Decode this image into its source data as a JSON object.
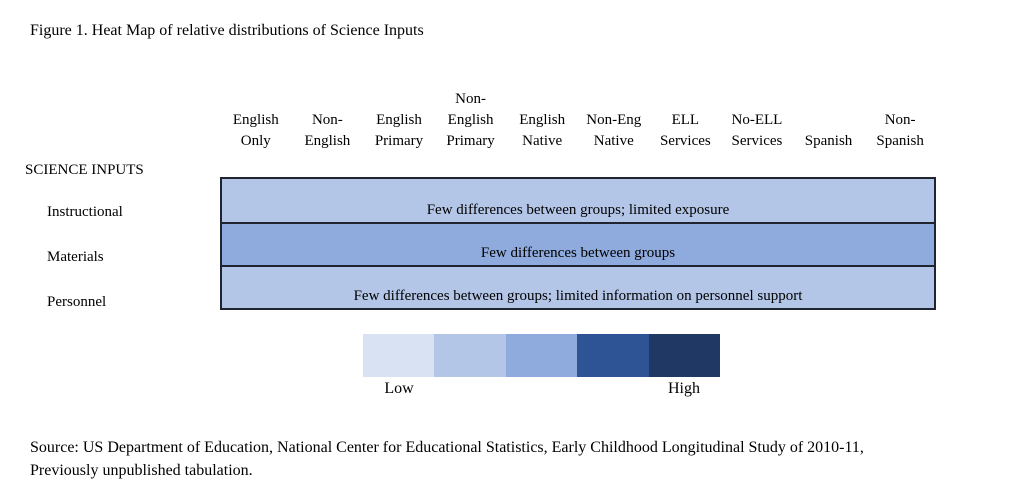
{
  "chart_data": {
    "type": "heatmap",
    "title": "Figure 1. Heat Map of relative distributions of Science Inputs",
    "row_group_label": "SCIENCE INPUTS",
    "columns": [
      "English Only",
      "Non-English",
      "English Primary",
      "Non-English Primary",
      "English Native",
      "Non-Eng Native",
      "ELL Services",
      "No-ELL Services",
      "Spanish",
      "Non-Spanish"
    ],
    "columns_display": [
      "English\nOnly",
      "Non-\nEnglish",
      "English\nPrimary",
      "Non-\nEnglish\nPrimary",
      "English\nNative",
      "Non-Eng\nNative",
      "ELL\nServices",
      "No-ELL\nServices",
      "Spanish",
      "Non-\nSpanish"
    ],
    "rows": [
      {
        "label": "Instructional",
        "annotation": "Few differences between groups; limited exposure",
        "color": "#B4C6E7",
        "relative_level": "low"
      },
      {
        "label": "Materials",
        "annotation": "Few differences between groups",
        "color": "#8FAADC",
        "relative_level": "medium"
      },
      {
        "label": "Personnel",
        "annotation": "Few differences between groups; limited information on personnel support",
        "color": "#B4C6E7",
        "relative_level": "low"
      }
    ],
    "legend": {
      "type": "color-scale",
      "swatches": [
        "#D9E2F3",
        "#B4C6E7",
        "#8FAADC",
        "#2F5496",
        "#1F3864"
      ],
      "low_label": "Low",
      "high_label": "High"
    }
  },
  "source": {
    "line1": "Source: US Department of Education, National Center for Educational Statistics, Early Childhood Longitudinal Study of 2010-11,",
    "line2": "Previously unpublished tabulation."
  }
}
